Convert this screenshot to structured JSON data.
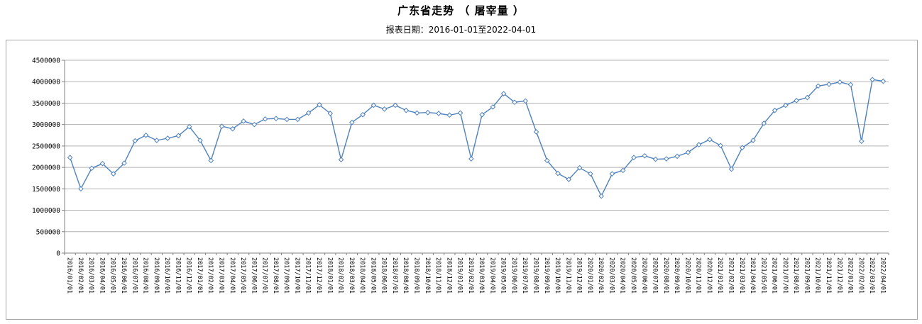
{
  "header": {
    "title": "广东省走势 （ 屠宰量 ）",
    "subtitle": "报表日期：2016-01-01至2022-04-01"
  },
  "colors": {
    "line": "#4f81bd",
    "marker_fill": "#ffffff",
    "grid": "#b2b2b2",
    "axis": "#808080",
    "frame": "#a6a6a6",
    "text": "#000000"
  },
  "chart_data": {
    "type": "line",
    "title": "广东省走势 （ 屠宰量 ）",
    "subtitle": "报表日期：2016-01-01至2022-04-01",
    "legend_position": "none",
    "grid": true,
    "marker": "diamond",
    "ylim": [
      0,
      4500000
    ],
    "ytick_interval": 500000,
    "yticks": [
      0,
      500000,
      1000000,
      1500000,
      2000000,
      2500000,
      3000000,
      3500000,
      4000000,
      4500000
    ],
    "x": [
      "2016/01/01",
      "2016/02/01",
      "2016/03/01",
      "2016/04/01",
      "2016/05/01",
      "2016/06/01",
      "2016/07/01",
      "2016/08/01",
      "2016/09/01",
      "2016/10/01",
      "2016/11/01",
      "2016/12/01",
      "2017/01/01",
      "2017/02/01",
      "2017/03/01",
      "2017/04/01",
      "2017/05/01",
      "2017/06/01",
      "2017/07/01",
      "2017/08/01",
      "2017/09/01",
      "2017/10/01",
      "2017/11/01",
      "2017/12/01",
      "2018/01/01",
      "2018/02/01",
      "2018/03/01",
      "2018/04/01",
      "2018/05/01",
      "2018/06/01",
      "2018/07/01",
      "2018/08/01",
      "2018/09/01",
      "2018/10/01",
      "2018/11/01",
      "2018/12/01",
      "2019/01/01",
      "2019/02/01",
      "2019/03/01",
      "2019/04/01",
      "2019/05/01",
      "2019/06/01",
      "2019/07/01",
      "2019/08/01",
      "2019/09/01",
      "2019/10/01",
      "2019/11/01",
      "2019/12/01",
      "2020/01/01",
      "2020/02/01",
      "2020/03/01",
      "2020/04/01",
      "2020/05/01",
      "2020/06/01",
      "2020/07/01",
      "2020/08/01",
      "2020/09/01",
      "2020/10/01",
      "2020/11/01",
      "2020/12/01",
      "2021/01/01",
      "2021/02/01",
      "2021/03/01",
      "2021/04/01",
      "2021/05/01",
      "2021/06/01",
      "2021/07/01",
      "2021/08/01",
      "2021/09/01",
      "2021/10/01",
      "2021/11/01",
      "2021/12/01",
      "2022/01/01",
      "2022/02/01",
      "2022/03/01",
      "2022/04/01"
    ],
    "series": [
      {
        "name": "屠宰量",
        "values": [
          2230000,
          1500000,
          1980000,
          2090000,
          1850000,
          2100000,
          2620000,
          2750000,
          2630000,
          2680000,
          2740000,
          2950000,
          2630000,
          2160000,
          2960000,
          2900000,
          3080000,
          3000000,
          3130000,
          3140000,
          3120000,
          3120000,
          3270000,
          3460000,
          3260000,
          2180000,
          3050000,
          3230000,
          3450000,
          3360000,
          3450000,
          3330000,
          3270000,
          3280000,
          3260000,
          3220000,
          3270000,
          2200000,
          3230000,
          3410000,
          3720000,
          3520000,
          3550000,
          2830000,
          2160000,
          1860000,
          1720000,
          1990000,
          1850000,
          1330000,
          1850000,
          1930000,
          2230000,
          2270000,
          2190000,
          2200000,
          2260000,
          2350000,
          2530000,
          2650000,
          2510000,
          1960000,
          2460000,
          2630000,
          3030000,
          3330000,
          3450000,
          3560000,
          3630000,
          3900000,
          3940000,
          3990000,
          3930000,
          2610000,
          4050000,
          4010000
        ]
      }
    ]
  }
}
